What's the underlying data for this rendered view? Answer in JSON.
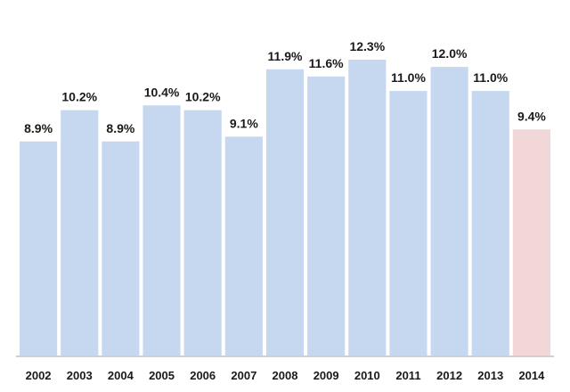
{
  "chart_data": {
    "type": "bar",
    "categories": [
      "2002",
      "2003",
      "2004",
      "2005",
      "2006",
      "2007",
      "2008",
      "2009",
      "2010",
      "2011",
      "2012",
      "2013",
      "2014"
    ],
    "values": [
      8.9,
      10.2,
      8.9,
      10.4,
      10.2,
      9.1,
      11.9,
      11.6,
      12.3,
      11.0,
      12.0,
      11.0,
      9.4
    ],
    "data_labels": [
      "8.9%",
      "10.2%",
      "8.9%",
      "10.4%",
      "10.2%",
      "9.1%",
      "11.9%",
      "11.6%",
      "12.3%",
      "11.0%",
      "12.0%",
      "11.0%",
      "9.4%"
    ],
    "title": "",
    "xlabel": "",
    "ylabel": "",
    "ylim": [
      0,
      12.3
    ],
    "grid": false,
    "legend": "none",
    "colors": {
      "default_bar": "#c5d8f0",
      "highlight_bar": "#f2d7d9",
      "axis": "#a0a0a0",
      "text": "#1a1a1a"
    },
    "highlight_index": 12
  }
}
